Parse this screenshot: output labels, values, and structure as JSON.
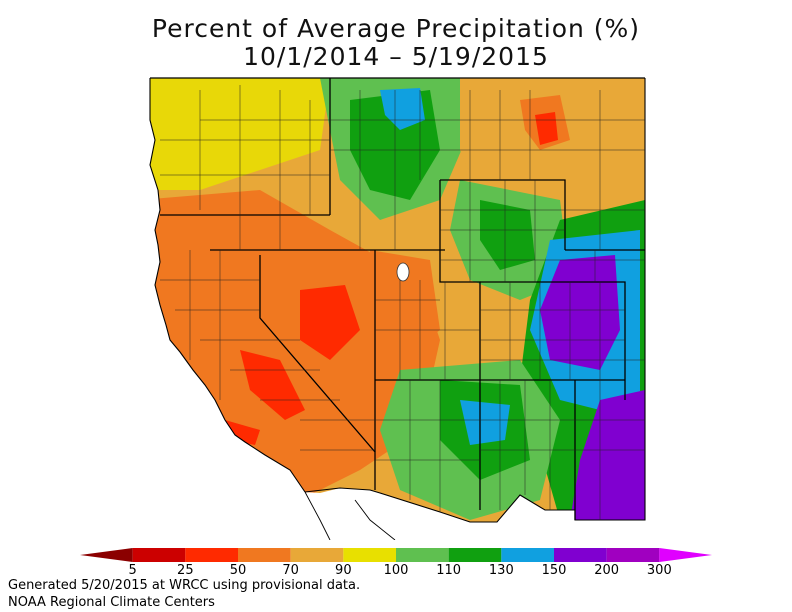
{
  "title": {
    "line1": "Percent of Average Precipitation (%)",
    "line2": "10/1/2014 – 5/19/2015"
  },
  "legend": {
    "ticks": [
      "5",
      "25",
      "50",
      "70",
      "90",
      "100",
      "110",
      "130",
      "150",
      "200",
      "300"
    ],
    "colors": [
      "#8b0000",
      "#cc0000",
      "#ff2a00",
      "#f07820",
      "#e8a838",
      "#e8e000",
      "#5fc050",
      "#10a010",
      "#10a0e0",
      "#8000d0",
      "#a000c0",
      "#e000ff"
    ]
  },
  "footer": {
    "line1": "Generated 5/20/2015 at WRCC using provisional data.",
    "line2": "NOAA Regional Climate Centers"
  }
}
